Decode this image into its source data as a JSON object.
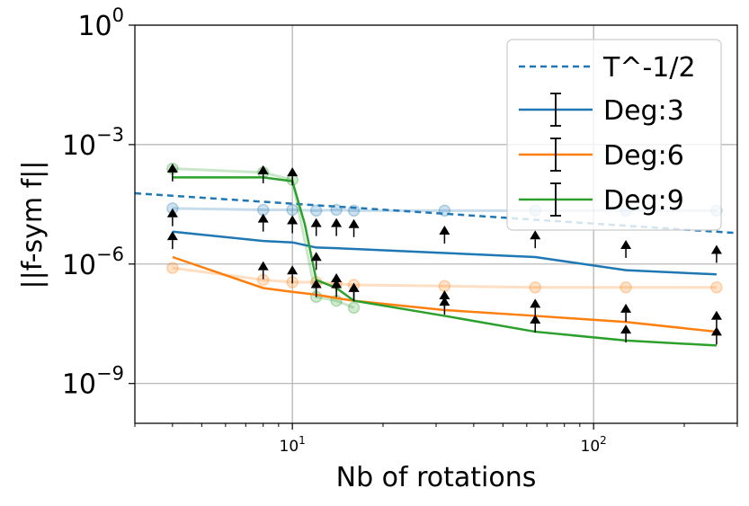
{
  "chart_data": {
    "type": "line",
    "xscale": "log",
    "yscale": "log",
    "xlim": [
      3,
      300
    ],
    "ylim": [
      1e-10,
      1
    ],
    "xlabel": "Nb of rotations",
    "ylabel": "||f-sym f||",
    "grid": true,
    "x_ticks": [
      {
        "value": 10,
        "base": "10",
        "exp": "1"
      },
      {
        "value": 100,
        "base": "10",
        "exp": "2"
      }
    ],
    "y_ticks": [
      {
        "value": 1,
        "base": "10",
        "exp": "0"
      },
      {
        "value": 0.001,
        "base": "10",
        "exp": "−3"
      },
      {
        "value": 1e-06,
        "base": "10",
        "exp": "−6"
      },
      {
        "value": 1e-09,
        "base": "10",
        "exp": "−9"
      }
    ],
    "legend": {
      "position": "top-right",
      "entries": [
        "T^-1/2",
        "Deg:3",
        "Deg:6",
        "Deg:9"
      ]
    },
    "reference_line": {
      "name": "T^-1/2",
      "color": "#1f77b4",
      "style": "dashed",
      "x": [
        3,
        300
      ],
      "y": [
        6e-05,
        6e-06
      ]
    },
    "series": [
      {
        "name": "Deg:3",
        "color": "#1f77b4",
        "x": [
          4,
          8,
          10,
          12,
          14,
          16,
          32,
          64,
          128,
          256
        ],
        "values": [
          6.5e-06,
          3.8e-06,
          3.5e-06,
          2.6e-06,
          2.5e-06,
          2.4e-06,
          1.9e-06,
          1.5e-06,
          7e-07,
          5.5e-07
        ],
        "scatter": [
          2.5e-05,
          2.3e-05,
          2.3e-05,
          2.2e-05,
          2.3e-05,
          2.2e-05,
          2.2e-05,
          2.2e-05,
          2.2e-05,
          2.2e-05
        ],
        "error_marks": [
          1.5e-05,
          1.1e-05,
          1e-05,
          8.5e-06,
          8.5e-06,
          8e-06,
          5.5e-06,
          4.2e-06,
          2.4e-06,
          1.8e-06
        ]
      },
      {
        "name": "Deg:6",
        "color": "#ff7f0e",
        "x": [
          4,
          8,
          10,
          12,
          14,
          16,
          32,
          64,
          128,
          256
        ],
        "values": [
          1.5e-06,
          2.5e-07,
          2e-07,
          1.7e-07,
          1.4e-07,
          1.2e-07,
          7e-08,
          5e-08,
          3.5e-08,
          2e-08
        ],
        "scatter": [
          8e-07,
          4e-07,
          3.5e-07,
          3.5e-07,
          3.2e-07,
          3e-07,
          2.8e-07,
          2.6e-07,
          2.6e-07,
          2.6e-07
        ],
        "error_marks": [
          4e-06,
          7e-07,
          5.5e-07,
          2.5e-07,
          2.5e-07,
          2e-07,
          1.3e-07,
          8e-08,
          6e-08,
          4e-08
        ]
      },
      {
        "name": "Deg:9",
        "color": "#2ca02c",
        "x": [
          4,
          8,
          10,
          11,
          12,
          14,
          16,
          32,
          64,
          128,
          256
        ],
        "values": [
          0.00015,
          0.00015,
          0.00012,
          1e-05,
          4e-07,
          2.5e-07,
          1.2e-07,
          5e-08,
          2e-08,
          1.2e-08,
          9e-09
        ],
        "scatter": [
          0.00025,
          0.0002,
          0.00013,
          null,
          1.5e-07,
          1.2e-07,
          8e-08,
          null,
          null,
          null,
          null
        ],
        "error_marks": [
          0.0002,
          0.00018,
          0.00016,
          null,
          1.2e-06,
          3.5e-07,
          2e-07,
          9e-08,
          3.2e-08,
          1.8e-08,
          1.6e-08
        ]
      }
    ]
  }
}
